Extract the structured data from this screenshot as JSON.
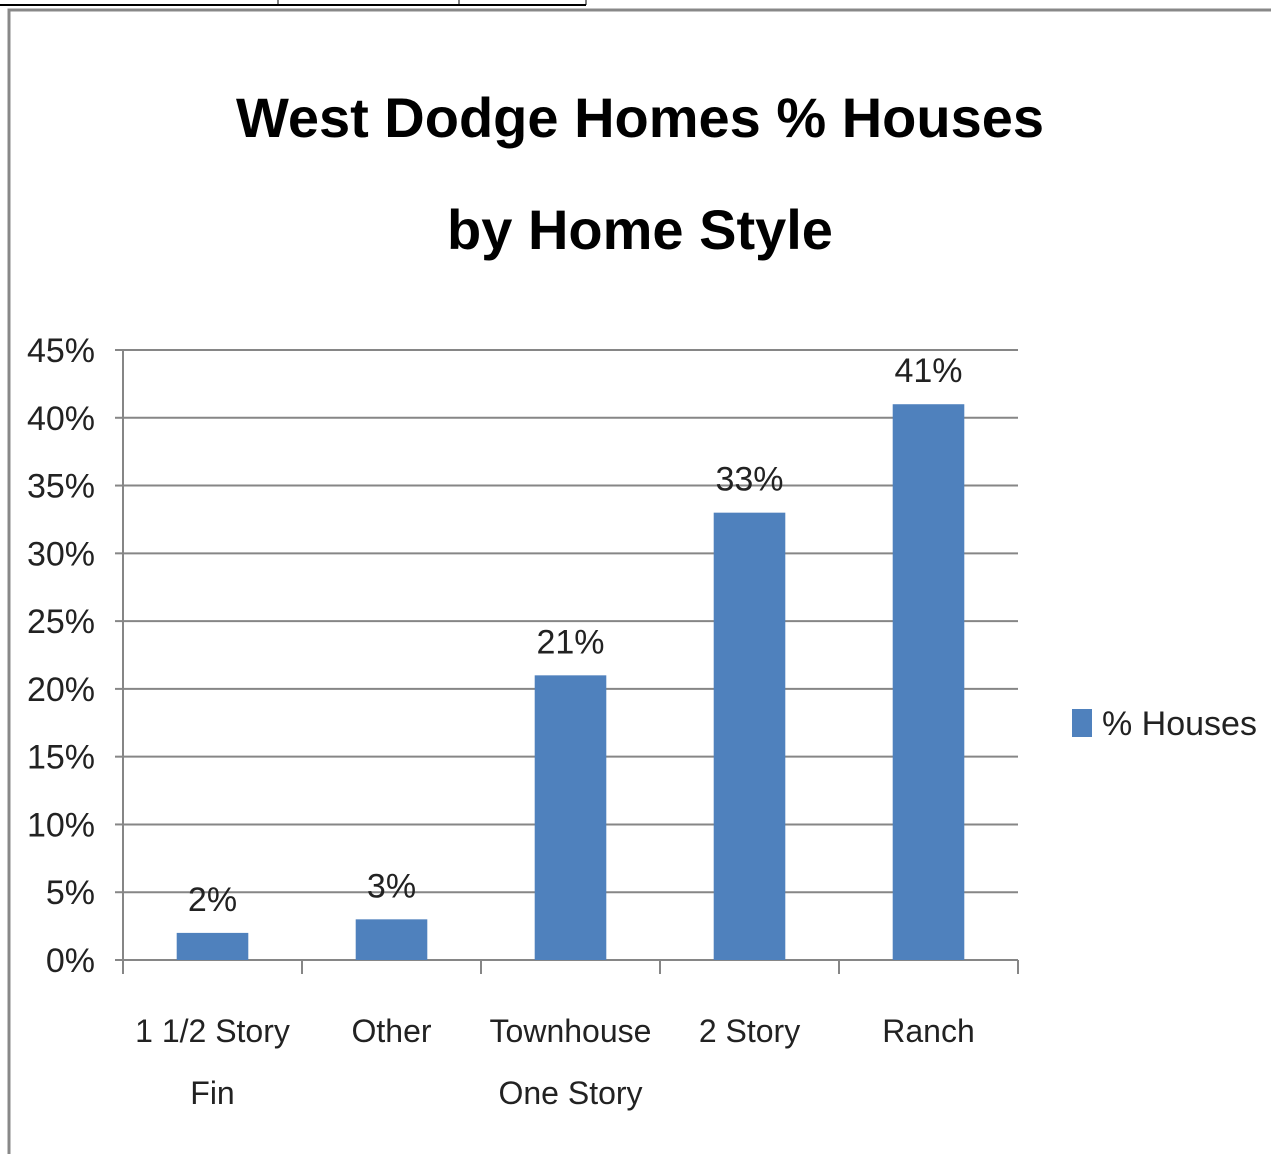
{
  "chart_data": {
    "type": "bar",
    "title": "West Dodge Homes % Houses by Home Style",
    "categories": [
      "1 1/2 Story Fin",
      "Other",
      "Townhouse One Story",
      "2 Story",
      "Ranch"
    ],
    "series": [
      {
        "name": "% Houses",
        "color": "#4f81bd",
        "values": [
          2,
          3,
          21,
          33,
          41
        ],
        "value_labels": [
          "2%",
          "3%",
          "21%",
          "33%",
          "41%"
        ]
      }
    ],
    "ylim": [
      0,
      45
    ],
    "yticks": [
      {
        "value": 0,
        "label": "0%"
      },
      {
        "value": 5,
        "label": "5%"
      },
      {
        "value": 10,
        "label": "10%"
      },
      {
        "value": 15,
        "label": "15%"
      },
      {
        "value": 20,
        "label": "20%"
      },
      {
        "value": 25,
        "label": "25%"
      },
      {
        "value": 30,
        "label": "30%"
      },
      {
        "value": 35,
        "label": "35%"
      },
      {
        "value": 40,
        "label": "40%"
      },
      {
        "value": 45,
        "label": "45%"
      }
    ],
    "grid": true,
    "legend": "right"
  }
}
